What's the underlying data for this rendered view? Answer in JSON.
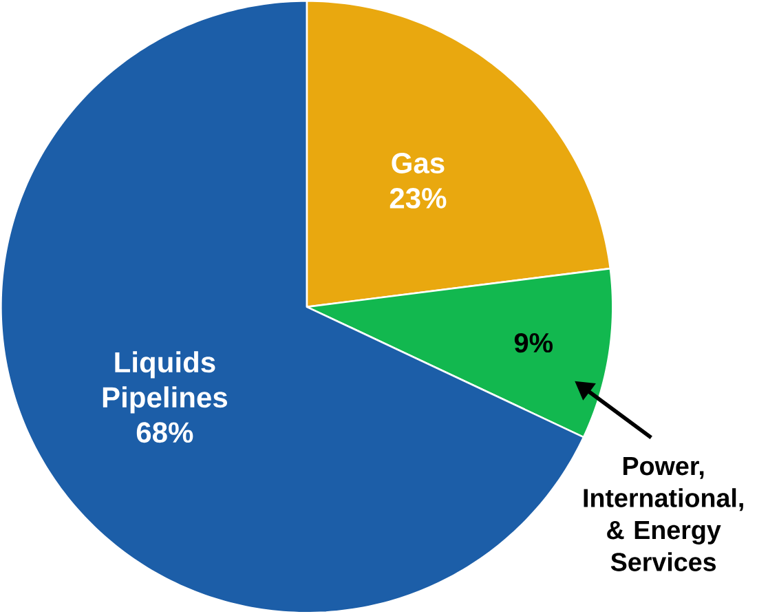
{
  "chart_data": {
    "type": "pie",
    "categories": [
      "Gas",
      "Power, International, & Energy Services",
      "Liquids Pipelines"
    ],
    "values": [
      23,
      9,
      68
    ],
    "value_labels": [
      "23%",
      "9%",
      "68%"
    ],
    "colors": [
      "#e9a80f",
      "#12b84f",
      "#1c5ea8"
    ]
  }
}
